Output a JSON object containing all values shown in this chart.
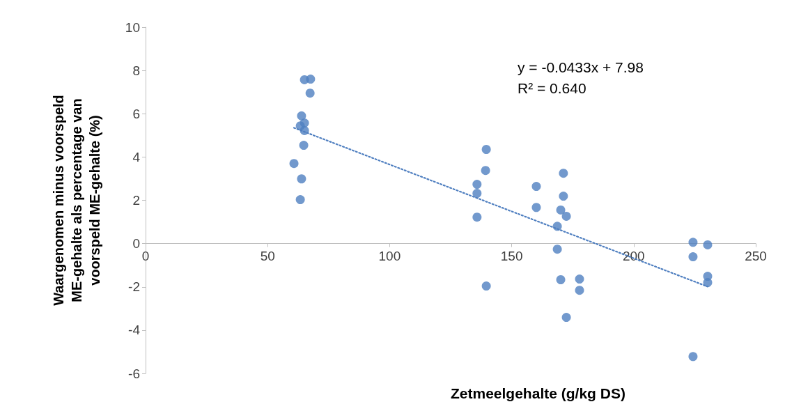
{
  "chart_data": {
    "type": "scatter",
    "xlabel": "Zetmeelgehalte (g/kg DS)",
    "ylabel": "Waargenomen minus voorspeld\nME-gehalte als percentage van\nvoorspeld ME-gehalte (%)",
    "xlim": [
      0,
      250
    ],
    "xticks": [
      0,
      50,
      100,
      150,
      200,
      250
    ],
    "ylim": [
      -6,
      10
    ],
    "yticks": [
      -6,
      -4,
      -2,
      0,
      2,
      4,
      6,
      8,
      10
    ],
    "grid": false,
    "marker": "circle",
    "annotations": [
      "y = -0.0433x + 7.98\nR² = 0.640"
    ],
    "series": [
      {
        "color": "#4f7fc0",
        "x": [
          67.6,
          65.1,
          67.4,
          63.9,
          63.4,
          65.1,
          65.1,
          64.8,
          60.8,
          63.9,
          63.4,
          139.6,
          139.3,
          135.8,
          135.8,
          135.8,
          139.6,
          160.1,
          160.1,
          171.2,
          171.2,
          170.1,
          172.4,
          168.7,
          168.7,
          170.1,
          177.8,
          177.8,
          172.4,
          224.3,
          224.3,
          230.3,
          230.3,
          230.3,
          224.3
        ],
        "values": [
          7.6,
          7.57,
          6.95,
          5.9,
          5.44,
          5.57,
          5.22,
          4.54,
          3.7,
          2.99,
          2.03,
          4.35,
          3.38,
          2.74,
          2.32,
          1.22,
          -1.96,
          2.64,
          1.67,
          3.25,
          2.19,
          1.55,
          1.26,
          0.8,
          -0.26,
          -1.67,
          -1.64,
          -2.16,
          -3.41,
          0.06,
          -0.61,
          -0.06,
          -1.51,
          -1.8,
          -5.22
        ]
      },
      {
        "type": "line",
        "color": "#4f7fc0",
        "line_style": "dotted",
        "marker": "none",
        "x": [
          60.8,
          230.3
        ],
        "values": [
          5.35,
          -1.99
        ]
      }
    ]
  }
}
